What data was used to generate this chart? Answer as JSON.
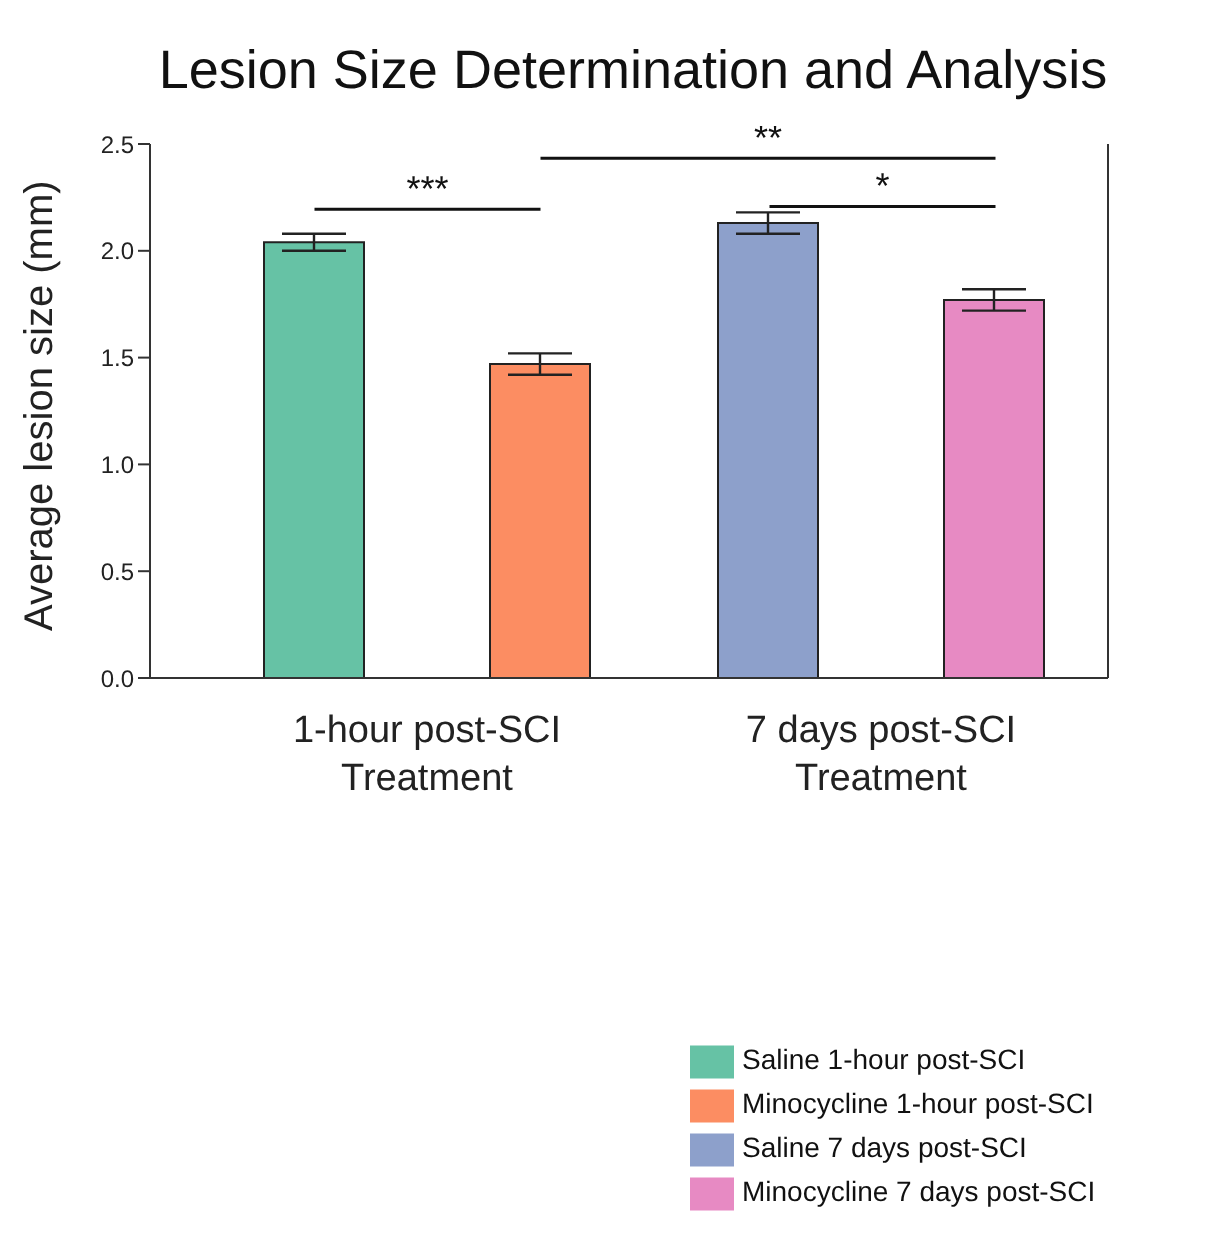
{
  "chart_data": {
    "type": "bar",
    "title": "Lesion Size Determination and Analysis",
    "ylabel": "Average lesion size (mm)",
    "categories": [
      "1-hour post-SCI Treatment",
      "7 days post-SCI Treatment"
    ],
    "series": [
      {
        "name": "Saline 1-hour post-SCI",
        "color": "#66c2a5",
        "values": [
          2.04,
          null
        ],
        "errors": [
          0.04,
          null
        ]
      },
      {
        "name": "Minocycline 1-hour post-SCI",
        "color": "#fc8d62",
        "values": [
          1.47,
          null
        ],
        "errors": [
          0.05,
          null
        ]
      },
      {
        "name": "Saline 7 days post-SCI",
        "color": "#8da0cb",
        "values": [
          null,
          2.13
        ],
        "errors": [
          null,
          0.05
        ]
      },
      {
        "name": "Minocycline 7 days post-SCI",
        "color": "#e78ac3",
        "values": [
          null,
          1.77
        ],
        "errors": [
          null,
          0.05
        ]
      }
    ],
    "ylim": [
      0,
      2.5
    ],
    "yticks": [
      {
        "value": 0,
        "label": "0.0"
      },
      {
        "value": 0.5,
        "label": "0.5"
      },
      {
        "value": 1,
        "label": "1.0"
      },
      {
        "value": 1.5,
        "label": "1.5"
      },
      {
        "value": 2,
        "label": "2.0"
      },
      {
        "value": 2.5,
        "label": "2.5"
      }
    ],
    "annotations": [
      "***",
      "**",
      "*"
    ],
    "legend": "bottom right",
    "grid": false
  }
}
